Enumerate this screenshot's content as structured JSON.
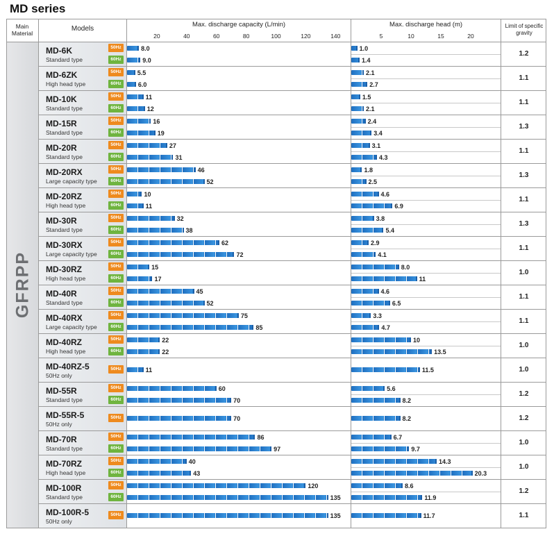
{
  "title": "MD series",
  "headers": {
    "material": "Main Material",
    "models": "Models",
    "capacity": "Max. discharge capacity (L/min)",
    "head": "Max. discharge head (m)",
    "gravity": "Limit of specific gravity"
  },
  "material": "GFRPP",
  "hz_labels": {
    "h50": "50Hz",
    "h60": "60Hz"
  },
  "chart_data": [
    {
      "type": "bar",
      "title": "Max. discharge capacity (L/min)",
      "xticks": [
        20,
        40,
        60,
        80,
        100,
        120,
        140
      ],
      "xlim": [
        0,
        140
      ],
      "categories": [
        "MD-6K",
        "MD-6ZK",
        "MD-10K",
        "MD-15R",
        "MD-20R",
        "MD-20RX",
        "MD-20RZ",
        "MD-30R",
        "MD-30RX",
        "MD-30RZ",
        "MD-40R",
        "MD-40RX",
        "MD-40RZ",
        "MD-40RZ-5",
        "MD-55R",
        "MD-55R-5",
        "MD-70R",
        "MD-70RZ",
        "MD-100R",
        "MD-100R-5"
      ],
      "series": [
        {
          "name": "50Hz",
          "values": [
            8.0,
            5.5,
            11,
            16,
            27,
            46,
            10,
            32,
            62,
            15,
            45,
            75,
            22,
            11,
            60,
            70,
            86,
            40,
            120,
            135
          ]
        },
        {
          "name": "60Hz",
          "values": [
            9.0,
            6.0,
            12,
            19,
            31,
            52,
            11,
            38,
            72,
            17,
            52,
            85,
            22,
            null,
            70,
            null,
            97,
            43,
            135,
            null
          ]
        }
      ]
    },
    {
      "type": "bar",
      "title": "Max. discharge head (m)",
      "xticks": [
        5,
        10,
        15,
        20
      ],
      "xlim": [
        0,
        25
      ],
      "categories": [
        "MD-6K",
        "MD-6ZK",
        "MD-10K",
        "MD-15R",
        "MD-20R",
        "MD-20RX",
        "MD-20RZ",
        "MD-30R",
        "MD-30RX",
        "MD-30RZ",
        "MD-40R",
        "MD-40RX",
        "MD-40RZ",
        "MD-40RZ-5",
        "MD-55R",
        "MD-55R-5",
        "MD-70R",
        "MD-70RZ",
        "MD-100R",
        "MD-100R-5"
      ],
      "series": [
        {
          "name": "50Hz",
          "values": [
            1.0,
            2.1,
            1.5,
            2.4,
            3.1,
            1.8,
            4.6,
            3.8,
            2.9,
            8.0,
            4.6,
            3.3,
            10,
            11.5,
            5.6,
            8.2,
            6.7,
            14.3,
            8.6,
            11.7
          ]
        },
        {
          "name": "60Hz",
          "values": [
            1.4,
            2.7,
            2.1,
            3.4,
            4.3,
            2.5,
            6.9,
            5.4,
            4.1,
            11,
            6.5,
            4.7,
            13.5,
            null,
            8.2,
            null,
            9.7,
            20.3,
            11.9,
            null
          ]
        }
      ]
    }
  ],
  "rows": [
    {
      "name": "MD-6K",
      "type": "Standard type",
      "cap": [
        "8.0",
        "9.0"
      ],
      "head": [
        "1.0",
        "1.4"
      ],
      "gravity": "1.2"
    },
    {
      "name": "MD-6ZK",
      "type": "High head type",
      "cap": [
        "5.5",
        "6.0"
      ],
      "head": [
        "2.1",
        "2.7"
      ],
      "gravity": "1.1"
    },
    {
      "name": "MD-10K",
      "type": "Standard type",
      "cap": [
        "11",
        "12"
      ],
      "head": [
        "1.5",
        "2.1"
      ],
      "gravity": "1.1"
    },
    {
      "name": "MD-15R",
      "type": "Standard type",
      "cap": [
        "16",
        "19"
      ],
      "head": [
        "2.4",
        "3.4"
      ],
      "gravity": "1.3"
    },
    {
      "name": "MD-20R",
      "type": "Standard type",
      "cap": [
        "27",
        "31"
      ],
      "head": [
        "3.1",
        "4.3"
      ],
      "gravity": "1.1"
    },
    {
      "name": "MD-20RX",
      "type": "Large capacity type",
      "cap": [
        "46",
        "52"
      ],
      "head": [
        "1.8",
        "2.5"
      ],
      "gravity": "1.3"
    },
    {
      "name": "MD-20RZ",
      "type": "High head type",
      "cap": [
        "10",
        "11"
      ],
      "head": [
        "4.6",
        "6.9"
      ],
      "gravity": "1.1"
    },
    {
      "name": "MD-30R",
      "type": "Standard type",
      "cap": [
        "32",
        "38"
      ],
      "head": [
        "3.8",
        "5.4"
      ],
      "gravity": "1.3"
    },
    {
      "name": "MD-30RX",
      "type": "Large capacity type",
      "cap": [
        "62",
        "72"
      ],
      "head": [
        "2.9",
        "4.1"
      ],
      "gravity": "1.1"
    },
    {
      "name": "MD-30RZ",
      "type": "High head type",
      "cap": [
        "15",
        "17"
      ],
      "head": [
        "8.0",
        "11"
      ],
      "gravity": "1.0"
    },
    {
      "name": "MD-40R",
      "type": "Standard type",
      "cap": [
        "45",
        "52"
      ],
      "head": [
        "4.6",
        "6.5"
      ],
      "gravity": "1.1"
    },
    {
      "name": "MD-40RX",
      "type": "Large capacity type",
      "cap": [
        "75",
        "85"
      ],
      "head": [
        "3.3",
        "4.7"
      ],
      "gravity": "1.1"
    },
    {
      "name": "MD-40RZ",
      "type": "High head type",
      "cap": [
        "22",
        "22"
      ],
      "head": [
        "10",
        "13.5"
      ],
      "gravity": "1.0"
    },
    {
      "name": "MD-40RZ-5",
      "type": "50Hz only",
      "cap": [
        "11"
      ],
      "head": [
        "11.5"
      ],
      "gravity": "1.0"
    },
    {
      "name": "MD-55R",
      "type": "Standard type",
      "cap": [
        "60",
        "70"
      ],
      "head": [
        "5.6",
        "8.2"
      ],
      "gravity": "1.2"
    },
    {
      "name": "MD-55R-5",
      "type": "50Hz only",
      "cap": [
        "70"
      ],
      "head": [
        "8.2"
      ],
      "gravity": "1.2"
    },
    {
      "name": "MD-70R",
      "type": "Standard type",
      "cap": [
        "86",
        "97"
      ],
      "head": [
        "6.7",
        "9.7"
      ],
      "gravity": "1.0"
    },
    {
      "name": "MD-70RZ",
      "type": "High head type",
      "cap": [
        "40",
        "43"
      ],
      "head": [
        "14.3",
        "20.3"
      ],
      "gravity": "1.0"
    },
    {
      "name": "MD-100R",
      "type": "Standard type",
      "cap": [
        "120",
        "135"
      ],
      "head": [
        "8.6",
        "11.9"
      ],
      "gravity": "1.2"
    },
    {
      "name": "MD-100R-5",
      "type": "50Hz only",
      "cap": [
        "135"
      ],
      "head": [
        "11.7"
      ],
      "gravity": "1.1"
    }
  ]
}
